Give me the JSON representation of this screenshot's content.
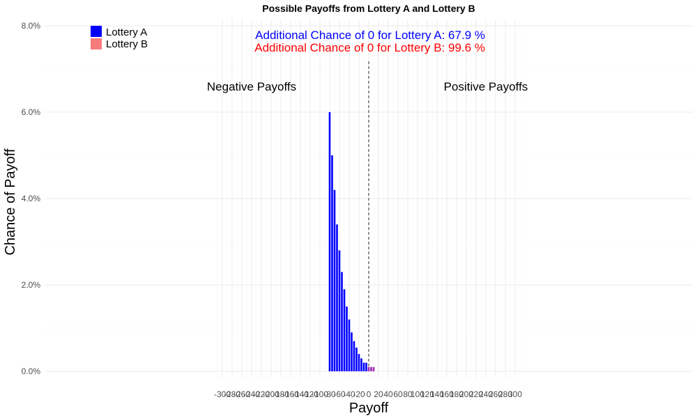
{
  "chart_data": {
    "type": "bar",
    "title": "Possible Payoffs from Lottery A and Lottery B",
    "xlabel": "Payoff",
    "ylabel": "Chance of Payoff",
    "xlim": [
      -310,
      310
    ],
    "ylim": [
      0,
      8.0
    ],
    "y_unit": "%",
    "x_ticks": [
      -300,
      -280,
      -260,
      -240,
      -220,
      -200,
      -180,
      -160,
      -140,
      -120,
      -100,
      -80,
      -60,
      -40,
      -20,
      0,
      20,
      40,
      60,
      80,
      100,
      120,
      140,
      160,
      180,
      200,
      220,
      240,
      260,
      280,
      300
    ],
    "y_ticks": [
      "0.0%",
      "2.0%",
      "4.0%",
      "6.0%",
      "8.0%"
    ],
    "y_tick_values": [
      0,
      2,
      4,
      6,
      8
    ],
    "grid": true,
    "legend_position": "top-left",
    "series": [
      {
        "name": "Lottery A",
        "color": "#0000ff",
        "x": [
          -80,
          -75,
          -70,
          -65,
          -60,
          -55,
          -50,
          -45,
          -40,
          -35,
          -30,
          -25,
          -20,
          -15,
          -10,
          -5
        ],
        "values": [
          6.0,
          5.0,
          4.2,
          3.4,
          2.8,
          2.3,
          1.9,
          1.5,
          1.2,
          0.9,
          0.7,
          0.55,
          0.4,
          0.3,
          0.2,
          0.2
        ]
      },
      {
        "name": "Lottery B",
        "color": "#f87a7a",
        "x": [
          0,
          5,
          10
        ],
        "values": [
          0.1,
          0.1,
          0.1
        ]
      }
    ],
    "reference_line": {
      "x": 0,
      "style": "dashed"
    },
    "annotations": [
      {
        "text": "Additional Chance of 0 for Lottery A:  67.9 %",
        "color": "#0000ff"
      },
      {
        "text": "Additional Chance of 0 for Lottery B:  99.6 %",
        "color": "#ff0000"
      },
      {
        "text": "Negative Payoffs",
        "color": "#000000"
      },
      {
        "text": "Positive Payoffs",
        "color": "#000000"
      }
    ]
  }
}
